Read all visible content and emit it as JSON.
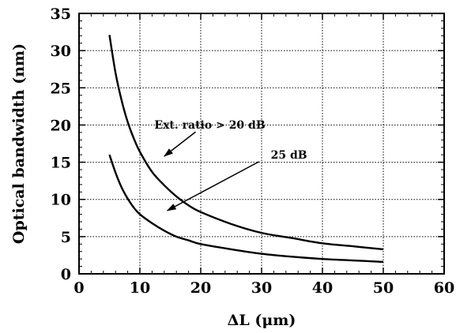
{
  "chart_data": {
    "type": "line",
    "xlabel": "ΔL (μm)",
    "ylabel": "Optical bandwidth (nm)",
    "xlim": [
      0,
      60
    ],
    "ylim": [
      0,
      35
    ],
    "x_ticks": [
      0,
      10,
      20,
      30,
      40,
      50,
      60
    ],
    "y_ticks": [
      0,
      5,
      10,
      15,
      20,
      25,
      30,
      35
    ],
    "grid": true,
    "series": [
      {
        "x": [
          5,
          6,
          7,
          8,
          9,
          10,
          12,
          14,
          16,
          18,
          20,
          25,
          30,
          35,
          40,
          45,
          50
        ],
        "y": [
          32.1,
          27.0,
          23.3,
          20.4,
          18.2,
          16.4,
          13.7,
          11.9,
          10.4,
          9.2,
          8.3,
          6.7,
          5.5,
          4.8,
          4.1,
          3.7,
          3.3
        ],
        "color": "#000000"
      },
      {
        "x": [
          5,
          6,
          7,
          8,
          9,
          10,
          12,
          14,
          16,
          18,
          20,
          25,
          30,
          35,
          40,
          45,
          50
        ],
        "y": [
          16.0,
          13.6,
          11.6,
          10.1,
          8.9,
          8.0,
          6.8,
          5.8,
          5.0,
          4.5,
          4.0,
          3.3,
          2.7,
          2.3,
          2.0,
          1.8,
          1.6
        ],
        "color": "#000000"
      }
    ],
    "annotations": [
      {
        "text": "Ext. ratio > 20 dB",
        "x": 21.5,
        "y": 19.5,
        "arrow_to": [
          14,
          15.8
        ]
      },
      {
        "text": "25 dB",
        "x": 34.5,
        "y": 15.5,
        "arrow_to": [
          14.5,
          8.5
        ]
      }
    ]
  }
}
